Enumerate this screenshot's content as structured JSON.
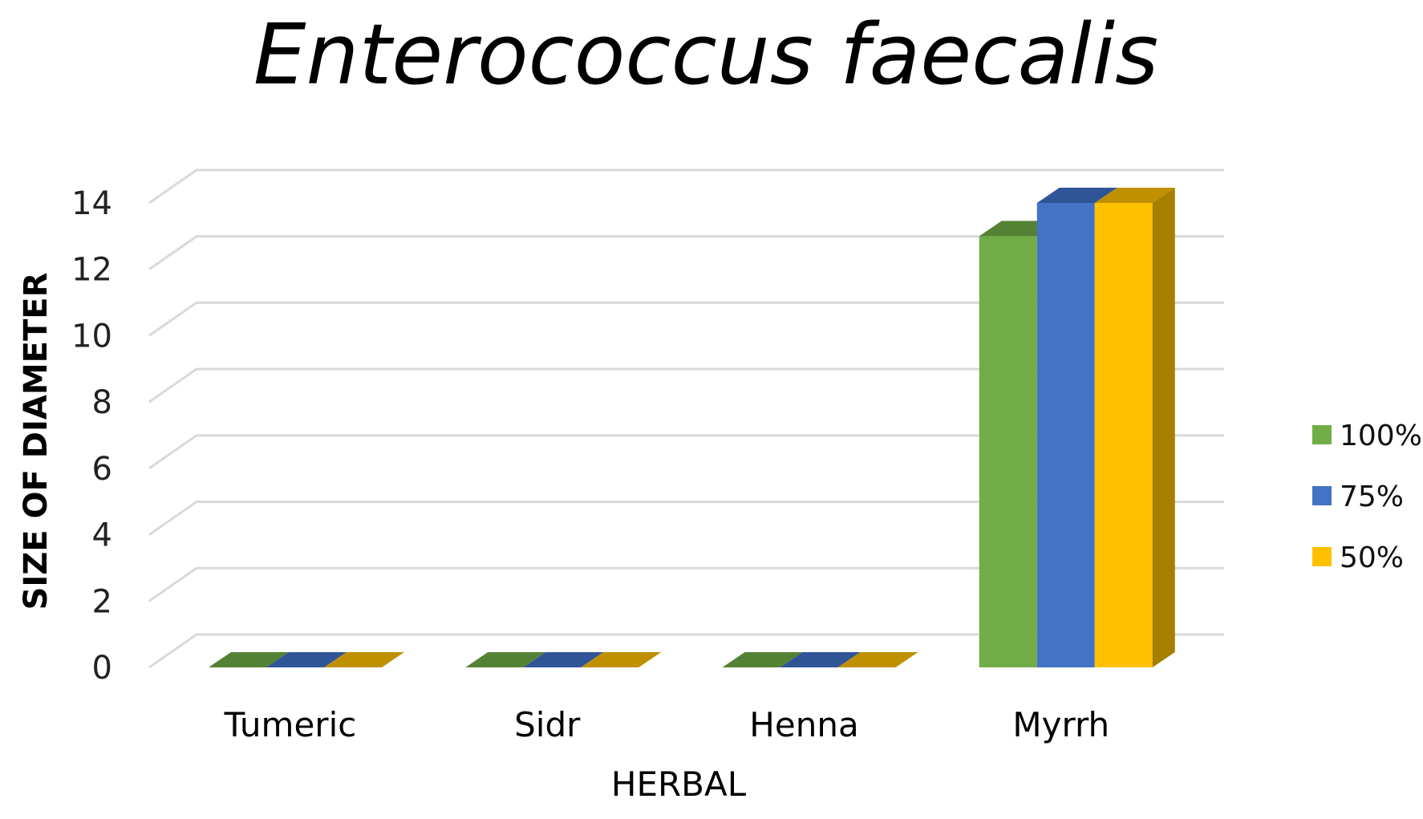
{
  "chart_data": {
    "type": "bar",
    "title": "Enterococcus faecalis",
    "xlabel": "HERBAL",
    "ylabel": "SIZE OF DIAMETER",
    "categories": [
      "Tumeric",
      "Sidr",
      "Henna",
      "Myrrh"
    ],
    "series": [
      {
        "name": "100%",
        "values": [
          0,
          0,
          0,
          13
        ],
        "color": "#70AD47",
        "top_color": "#548235",
        "side_color": "#4E7A31"
      },
      {
        "name": "75%",
        "values": [
          0,
          0,
          0,
          14
        ],
        "color": "#4472C4",
        "top_color": "#2F5597",
        "side_color": "#2E5190"
      },
      {
        "name": "50%",
        "values": [
          0,
          0,
          0,
          14
        ],
        "color": "#FFC000",
        "top_color": "#BF9000",
        "side_color": "#A67F00"
      }
    ],
    "ylim": [
      0,
      14
    ],
    "yticks": [
      "0",
      "2",
      "4",
      "6",
      "8",
      "10",
      "12",
      "14"
    ],
    "grid": true,
    "style": "3d-clustered-column",
    "legend_position": "right"
  }
}
